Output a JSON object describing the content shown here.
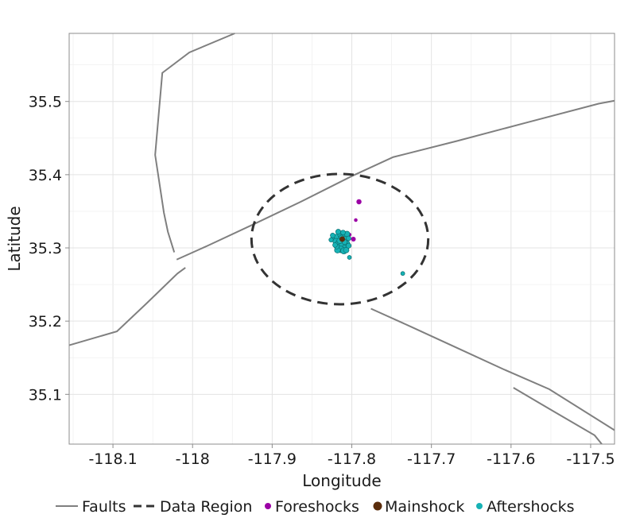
{
  "chart_data": {
    "type": "scatter",
    "title": "",
    "xlabel": "Longitude",
    "ylabel": "Latitude",
    "xlim": [
      -118.155,
      -117.47
    ],
    "ylim": [
      35.032,
      35.593
    ],
    "x_ticks": [
      -118.1,
      -118.0,
      -117.9,
      -117.8,
      -117.7,
      -117.6,
      -117.5
    ],
    "x_tick_labels": [
      "-118.1",
      "-118",
      "-117.9",
      "-117.8",
      "-117.7",
      "-117.6",
      "-117.5"
    ],
    "y_ticks": [
      35.1,
      35.2,
      35.3,
      35.4,
      35.5
    ],
    "y_tick_labels": [
      "35.1",
      "35.2",
      "35.3",
      "35.4",
      "35.5"
    ],
    "grid": true,
    "legend_position": "bottom",
    "legend": [
      {
        "label": "Faults",
        "kind": "line",
        "color": "#7f7f7f"
      },
      {
        "label": "Data Region",
        "kind": "dashed",
        "color": "#333333"
      },
      {
        "label": "Foreshocks",
        "kind": "point",
        "color": "#9b00a5"
      },
      {
        "label": "Mainshock",
        "kind": "point",
        "color": "#5a2d0c"
      },
      {
        "label": "Aftershocks",
        "kind": "point",
        "color": "#17b2b5"
      }
    ],
    "faults": [
      {
        "points": [
          [
            -118.155,
            35.167
          ],
          [
            -118.095,
            35.186
          ],
          [
            -118.057,
            35.225
          ],
          [
            -118.019,
            35.265
          ],
          [
            -118.009,
            35.273
          ]
        ]
      },
      {
        "points": [
          [
            -118.02,
            35.284
          ],
          [
            -117.981,
            35.303
          ],
          [
            -117.92,
            35.334
          ],
          [
            -117.866,
            35.362
          ],
          [
            -117.8,
            35.398
          ],
          [
            -117.748,
            35.424
          ],
          [
            -117.668,
            35.446
          ],
          [
            -117.581,
            35.471
          ],
          [
            -117.49,
            35.497
          ],
          [
            -117.47,
            35.501
          ]
        ]
      },
      {
        "points": [
          [
            -118.023,
            35.294
          ],
          [
            -118.031,
            35.322
          ],
          [
            -118.036,
            35.348
          ],
          [
            -118.047,
            35.427
          ],
          [
            -118.038,
            35.539
          ],
          [
            -118.004,
            35.567
          ],
          [
            -117.947,
            35.593
          ]
        ]
      },
      {
        "points": [
          [
            -117.776,
            35.217
          ],
          [
            -117.725,
            35.192
          ],
          [
            -117.665,
            35.162
          ],
          [
            -117.609,
            35.134
          ],
          [
            -117.552,
            35.107
          ],
          [
            -117.47,
            35.051
          ]
        ]
      },
      {
        "points": [
          [
            -117.597,
            35.109
          ],
          [
            -117.547,
            35.077
          ],
          [
            -117.495,
            35.044
          ],
          [
            -117.486,
            35.032
          ]
        ]
      }
    ],
    "data_region": {
      "center": [
        -117.815,
        35.312
      ],
      "radius_lon": 0.111,
      "radius_lat": 0.089
    },
    "series": [
      {
        "name": "Foreshocks",
        "color": "#9b00a5",
        "points": [
          [
            -117.791,
            35.363,
            2.6
          ],
          [
            -117.795,
            35.338,
            1.8
          ],
          [
            -117.798,
            35.312,
            2.4
          ],
          [
            -117.803,
            35.318,
            2.0
          ]
        ]
      },
      {
        "name": "Mainshock",
        "color": "#5a2d0c",
        "points": [
          [
            -117.812,
            35.312,
            2.8
          ]
        ]
      },
      {
        "name": "Aftershocks",
        "color": "#17b2b5",
        "points": [
          [
            -117.822,
            35.313,
            3.6
          ],
          [
            -117.818,
            35.315,
            3.2
          ],
          [
            -117.814,
            35.318,
            3.0
          ],
          [
            -117.81,
            35.316,
            3.4
          ],
          [
            -117.806,
            35.319,
            2.8
          ],
          [
            -117.82,
            35.309,
            3.0
          ],
          [
            -117.816,
            35.306,
            3.6
          ],
          [
            -117.812,
            35.303,
            3.2
          ],
          [
            -117.808,
            35.301,
            3.0
          ],
          [
            -117.806,
            35.306,
            2.8
          ],
          [
            -117.814,
            35.298,
            3.4
          ],
          [
            -117.818,
            35.297,
            3.0
          ],
          [
            -117.81,
            35.296,
            3.2
          ],
          [
            -117.807,
            35.297,
            2.8
          ],
          [
            -117.819,
            35.302,
            2.6
          ],
          [
            -117.804,
            35.303,
            2.6
          ],
          [
            -117.817,
            35.322,
            2.6
          ],
          [
            -117.811,
            35.321,
            2.4
          ],
          [
            -117.824,
            35.317,
            2.4
          ],
          [
            -117.808,
            35.312,
            2.8
          ],
          [
            -117.804,
            35.313,
            2.4
          ],
          [
            -117.826,
            35.311,
            2.2
          ],
          [
            -117.815,
            35.31,
            3.0
          ],
          [
            -117.809,
            35.308,
            2.6
          ],
          [
            -117.803,
            35.287,
            2.0
          ],
          [
            -117.736,
            35.265,
            2.0
          ],
          [
            -117.821,
            35.304,
            2.4
          ],
          [
            -117.813,
            35.314,
            2.6
          ]
        ]
      }
    ]
  }
}
